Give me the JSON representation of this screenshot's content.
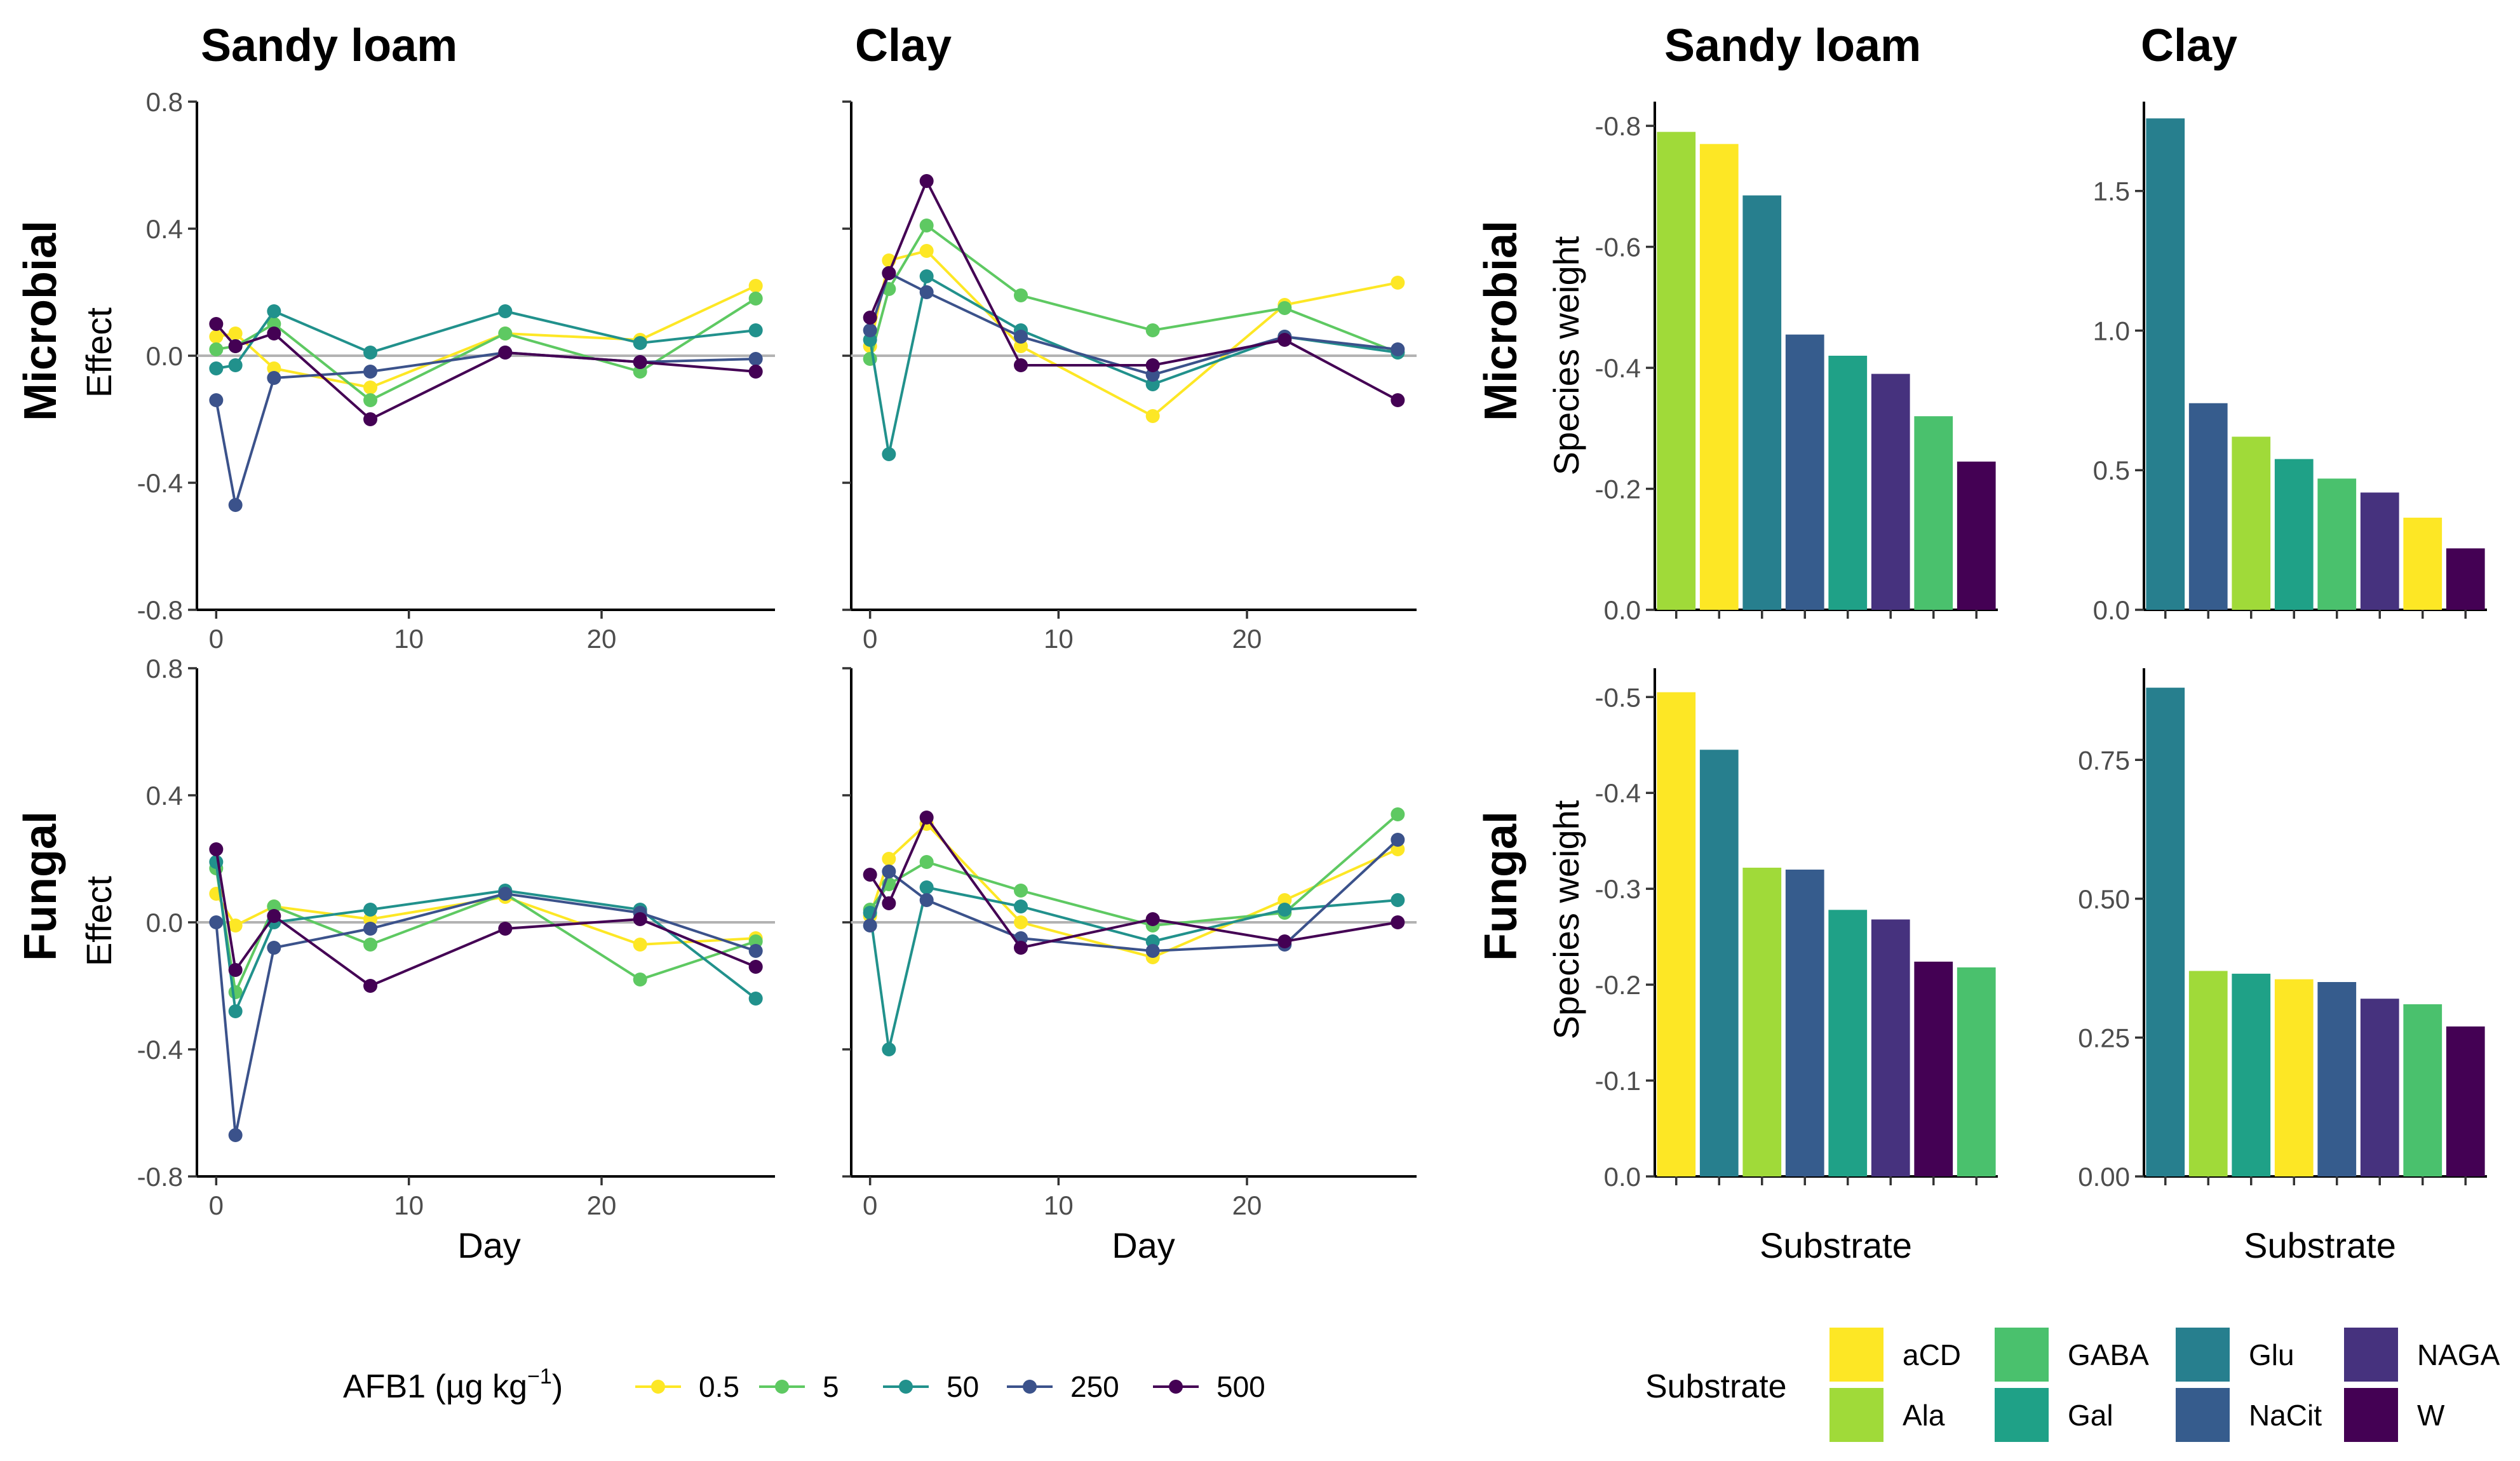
{
  "colors": {
    "0.5": "#FDE725",
    "5": "#5EC962",
    "50": "#21918C",
    "250": "#3B528B",
    "500": "#440154",
    "aCD": "#FDE725",
    "Ala": "#A0DA39",
    "GABA": "#4AC16D",
    "Gal": "#1FA187",
    "Glu": "#277F8E",
    "NaCit": "#365C8D",
    "NAGA": "#46327E",
    "W": "#440154"
  },
  "labels": {
    "col_sandy": "Sandy loam",
    "col_clay": "Clay",
    "row_microbial": "Microbial",
    "row_fungal": "Fungal",
    "effect": "Effect",
    "species_weight": "Species weight",
    "day": "Day",
    "substrate": "Substrate"
  },
  "legend_afb1": {
    "title_main": "AFB1 (µg kg",
    "title_sup": "−1",
    "title_close": ")",
    "items": [
      "0.5",
      "5",
      "50",
      "250",
      "500"
    ]
  },
  "legend_substrate": {
    "title": "Substrate",
    "items": [
      "aCD",
      "Ala",
      "GABA",
      "Gal",
      "Glu",
      "NaCit",
      "NAGA",
      "W"
    ]
  },
  "chart_data": [
    {
      "type": "line",
      "title": "Sandy loam",
      "row": "Microbial",
      "xlabel": "Day",
      "ylabel": "Effect",
      "xlim": [
        -1,
        29
      ],
      "ylim": [
        -0.8,
        0.8
      ],
      "xticks": [
        0,
        10,
        20
      ],
      "yticks": [
        -0.8,
        -0.4,
        0.0,
        0.4,
        0.8
      ],
      "ytick_labels": [
        "-0.8",
        "-0.4",
        "0.0",
        "0.4",
        "0.8"
      ],
      "x": [
        0,
        1,
        3,
        8,
        15,
        22,
        28
      ],
      "series": [
        {
          "name": "0.5",
          "values": [
            0.06,
            0.07,
            -0.04,
            -0.1,
            0.07,
            0.05,
            0.22
          ]
        },
        {
          "name": "5",
          "values": [
            0.02,
            0.03,
            0.1,
            -0.14,
            0.07,
            -0.05,
            0.18
          ]
        },
        {
          "name": "50",
          "values": [
            -0.04,
            -0.03,
            0.14,
            0.01,
            0.14,
            0.04,
            0.08
          ]
        },
        {
          "name": "250",
          "values": [
            -0.14,
            -0.47,
            -0.07,
            -0.05,
            0.01,
            -0.02,
            -0.01
          ]
        },
        {
          "name": "500",
          "values": [
            0.1,
            0.03,
            0.07,
            -0.2,
            0.01,
            -0.02,
            -0.05
          ]
        }
      ]
    },
    {
      "type": "line",
      "title": "Clay",
      "row": "Microbial",
      "xlabel": "Day",
      "ylabel": "",
      "xlim": [
        -1,
        29
      ],
      "ylim": [
        -0.8,
        0.8
      ],
      "xticks": [
        0,
        10,
        20
      ],
      "yticks": [
        -0.8,
        -0.4,
        0.0,
        0.4,
        0.8
      ],
      "ytick_labels": [
        "",
        "",
        "",
        "",
        ""
      ],
      "x": [
        0,
        1,
        3,
        8,
        15,
        22,
        28
      ],
      "series": [
        {
          "name": "0.5",
          "values": [
            0.03,
            0.3,
            0.33,
            0.03,
            -0.19,
            0.16,
            0.23
          ]
        },
        {
          "name": "5",
          "values": [
            -0.01,
            0.21,
            0.41,
            0.19,
            0.08,
            0.15,
            0.01
          ]
        },
        {
          "name": "50",
          "values": [
            0.05,
            -0.31,
            0.25,
            0.08,
            -0.09,
            0.06,
            0.01
          ]
        },
        {
          "name": "250",
          "values": [
            0.08,
            0.26,
            0.2,
            0.06,
            -0.06,
            0.06,
            0.02
          ]
        },
        {
          "name": "500",
          "values": [
            0.12,
            0.26,
            0.55,
            -0.03,
            -0.03,
            0.05,
            -0.14
          ]
        }
      ]
    },
    {
      "type": "line",
      "title": "Sandy loam",
      "row": "Fungal",
      "xlabel": "Day",
      "ylabel": "Effect",
      "xlim": [
        -1,
        29
      ],
      "ylim": [
        -0.8,
        0.8
      ],
      "xticks": [
        0,
        10,
        20
      ],
      "yticks": [
        -0.8,
        -0.4,
        0.0,
        0.4,
        0.8
      ],
      "ytick_labels": [
        "-0.8",
        "-0.4",
        "0.0",
        "0.4",
        "0.8"
      ],
      "x": [
        0,
        1,
        3,
        8,
        15,
        22,
        28
      ],
      "series": [
        {
          "name": "0.5",
          "values": [
            0.09,
            -0.01,
            0.05,
            0.01,
            0.08,
            -0.07,
            -0.05
          ]
        },
        {
          "name": "5",
          "values": [
            0.17,
            -0.22,
            0.05,
            -0.07,
            0.09,
            -0.18,
            -0.06
          ]
        },
        {
          "name": "50",
          "values": [
            0.19,
            -0.28,
            0.0,
            0.04,
            0.1,
            0.04,
            -0.24
          ]
        },
        {
          "name": "250",
          "values": [
            0.0,
            -0.67,
            -0.08,
            -0.02,
            0.09,
            0.03,
            -0.09
          ]
        },
        {
          "name": "500",
          "values": [
            0.23,
            -0.15,
            0.02,
            -0.2,
            -0.02,
            0.01,
            -0.14
          ]
        }
      ]
    },
    {
      "type": "line",
      "title": "Clay",
      "row": "Fungal",
      "xlabel": "Day",
      "ylabel": "",
      "xlim": [
        -1,
        29
      ],
      "ylim": [
        -0.8,
        0.8
      ],
      "xticks": [
        0,
        10,
        20
      ],
      "yticks": [
        -0.8,
        -0.4,
        0.0,
        0.4,
        0.8
      ],
      "ytick_labels": [
        "",
        "",
        "",
        "",
        ""
      ],
      "x": [
        0,
        1,
        3,
        8,
        15,
        22,
        28
      ],
      "series": [
        {
          "name": "0.5",
          "values": [
            0.02,
            0.2,
            0.31,
            0.0,
            -0.11,
            0.07,
            0.23
          ]
        },
        {
          "name": "5",
          "values": [
            0.04,
            0.12,
            0.19,
            0.1,
            -0.01,
            0.03,
            0.34
          ]
        },
        {
          "name": "50",
          "values": [
            0.03,
            -0.4,
            0.11,
            0.05,
            -0.06,
            0.04,
            0.07
          ]
        },
        {
          "name": "250",
          "values": [
            -0.01,
            0.16,
            0.07,
            -0.05,
            -0.09,
            -0.07,
            0.26
          ]
        },
        {
          "name": "500",
          "values": [
            0.15,
            0.06,
            0.33,
            -0.08,
            0.01,
            -0.06,
            0.0
          ]
        }
      ]
    },
    {
      "type": "bar",
      "title": "Sandy loam",
      "row": "Microbial",
      "xlabel": "",
      "ylabel": "Species weight",
      "ylim": [
        0,
        0.84
      ],
      "reverse_axis": true,
      "yticks": [
        0.0,
        0.2,
        0.4,
        0.6,
        0.8
      ],
      "ytick_labels": [
        "0.0",
        "-0.2",
        "-0.4",
        "-0.6",
        "-0.8"
      ],
      "categories": [
        "Ala",
        "aCD",
        "Glu",
        "NaCit",
        "Gal",
        "NAGA",
        "GABA",
        "W"
      ],
      "values": [
        -0.79,
        -0.77,
        -0.685,
        -0.455,
        -0.42,
        -0.39,
        -0.32,
        -0.245
      ]
    },
    {
      "type": "bar",
      "title": "Clay",
      "row": "Microbial",
      "xlabel": "",
      "ylabel": "",
      "ylim": [
        0,
        1.82
      ],
      "reverse_axis": false,
      "yticks": [
        0.0,
        0.5,
        1.0,
        1.5
      ],
      "ytick_labels": [
        "0.0",
        "0.5",
        "1.0",
        "1.5"
      ],
      "categories": [
        "Glu",
        "NaCit",
        "Ala",
        "Gal",
        "GABA",
        "NAGA",
        "aCD",
        "W"
      ],
      "values": [
        1.76,
        0.74,
        0.62,
        0.54,
        0.47,
        0.42,
        0.33,
        0.22
      ]
    },
    {
      "type": "bar",
      "title": "Sandy loam",
      "row": "Fungal",
      "xlabel": "Substrate",
      "ylabel": "Species weight",
      "ylim": [
        0,
        0.53
      ],
      "reverse_axis": true,
      "yticks": [
        0.0,
        0.1,
        0.2,
        0.3,
        0.4,
        0.5
      ],
      "ytick_labels": [
        "0.0",
        "-0.1",
        "-0.2",
        "-0.3",
        "-0.4",
        "-0.5"
      ],
      "categories": [
        "aCD",
        "Glu",
        "Ala",
        "NaCit",
        "Gal",
        "NAGA",
        "W",
        "GABA"
      ],
      "values": [
        -0.505,
        -0.445,
        -0.322,
        -0.32,
        -0.278,
        -0.268,
        -0.224,
        -0.218
      ]
    },
    {
      "type": "bar",
      "title": "Clay",
      "row": "Fungal",
      "xlabel": "Substrate",
      "ylabel": "",
      "ylim": [
        0,
        0.915
      ],
      "reverse_axis": false,
      "yticks": [
        0.0,
        0.25,
        0.5,
        0.75
      ],
      "ytick_labels": [
        "0.00",
        "0.25",
        "0.50",
        "0.75"
      ],
      "categories": [
        "Glu",
        "Ala",
        "Gal",
        "aCD",
        "NaCit",
        "NAGA",
        "GABA",
        "W"
      ],
      "values": [
        0.88,
        0.37,
        0.365,
        0.355,
        0.35,
        0.32,
        0.31,
        0.27
      ]
    }
  ]
}
